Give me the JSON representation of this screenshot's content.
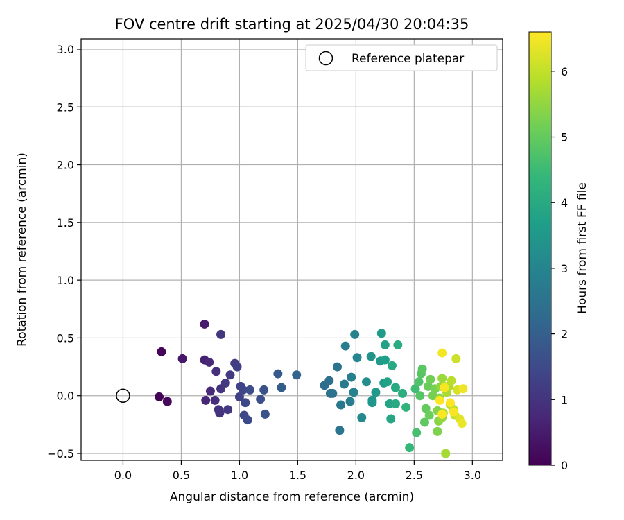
{
  "chart_data": {
    "type": "scatter",
    "title": "FOV centre drift starting at 2025/04/30 20:04:35",
    "xlabel": "Angular distance from reference (arcmin)",
    "ylabel": "Rotation from reference (arcmin)",
    "xlim": [
      -0.36,
      3.26
    ],
    "ylim": [
      -0.56,
      3.09
    ],
    "xticks": [
      0.0,
      0.5,
      1.0,
      1.5,
      2.0,
      2.5,
      3.0
    ],
    "xtick_labels": [
      "0.0",
      "0.5",
      "1.0",
      "1.5",
      "2.0",
      "2.5",
      "3.0"
    ],
    "yticks": [
      -0.5,
      0.0,
      0.5,
      1.0,
      1.5,
      2.0,
      2.5,
      3.0
    ],
    "ytick_labels": [
      "−0.5",
      "0.0",
      "0.5",
      "1.0",
      "1.5",
      "2.0",
      "2.5",
      "3.0"
    ],
    "grid": true,
    "legend": {
      "position": "top-right",
      "label": "Reference platepar"
    },
    "reference_point": {
      "x": 0.0,
      "y": 0.0
    },
    "colorbar": {
      "label": "Hours from first FF file",
      "range": [
        0,
        6.6
      ],
      "ticks": [
        0,
        1,
        2,
        3,
        4,
        5,
        6
      ],
      "tick_labels": [
        "0",
        "1",
        "2",
        "3",
        "4",
        "5",
        "6"
      ],
      "colormap": "viridis"
    },
    "colormap_stops": [
      "#440154",
      "#482878",
      "#3e4989",
      "#31688e",
      "#26828e",
      "#1f9e89",
      "#35b779",
      "#6ece58",
      "#b5de2b",
      "#fde725"
    ],
    "points": [
      {
        "x": 0.31,
        "y": -0.01,
        "h": 0.05
      },
      {
        "x": 0.33,
        "y": 0.38,
        "h": 0.1
      },
      {
        "x": 0.38,
        "y": -0.05,
        "h": 0.15
      },
      {
        "x": 0.51,
        "y": 0.32,
        "h": 0.4
      },
      {
        "x": 0.7,
        "y": 0.62,
        "h": 0.5
      },
      {
        "x": 0.7,
        "y": 0.31,
        "h": 0.6
      },
      {
        "x": 0.71,
        "y": -0.04,
        "h": 0.7
      },
      {
        "x": 0.74,
        "y": 0.29,
        "h": 0.75
      },
      {
        "x": 0.75,
        "y": 0.04,
        "h": 0.8
      },
      {
        "x": 0.79,
        "y": -0.04,
        "h": 0.85
      },
      {
        "x": 0.8,
        "y": 0.21,
        "h": 0.9
      },
      {
        "x": 0.82,
        "y": -0.12,
        "h": 0.95
      },
      {
        "x": 0.83,
        "y": -0.15,
        "h": 1.0
      },
      {
        "x": 0.84,
        "y": 0.06,
        "h": 1.0
      },
      {
        "x": 0.84,
        "y": 0.53,
        "h": 1.05
      },
      {
        "x": 0.88,
        "y": 0.11,
        "h": 1.1
      },
      {
        "x": 0.9,
        "y": -0.12,
        "h": 1.1
      },
      {
        "x": 0.92,
        "y": 0.18,
        "h": 1.15
      },
      {
        "x": 0.96,
        "y": 0.28,
        "h": 1.2
      },
      {
        "x": 0.98,
        "y": 0.25,
        "h": 1.25
      },
      {
        "x": 1.0,
        "y": -0.01,
        "h": 1.3
      },
      {
        "x": 1.01,
        "y": 0.08,
        "h": 1.35
      },
      {
        "x": 1.03,
        "y": 0.05,
        "h": 1.4
      },
      {
        "x": 1.04,
        "y": -0.17,
        "h": 1.4
      },
      {
        "x": 1.05,
        "y": -0.06,
        "h": 1.45
      },
      {
        "x": 1.07,
        "y": -0.21,
        "h": 1.5
      },
      {
        "x": 1.09,
        "y": 0.05,
        "h": 1.55
      },
      {
        "x": 1.18,
        "y": -0.03,
        "h": 1.6
      },
      {
        "x": 1.21,
        "y": 0.05,
        "h": 1.65
      },
      {
        "x": 1.22,
        "y": -0.16,
        "h": 1.7
      },
      {
        "x": 1.33,
        "y": 0.19,
        "h": 1.85
      },
      {
        "x": 1.36,
        "y": 0.07,
        "h": 1.95
      },
      {
        "x": 1.49,
        "y": 0.18,
        "h": 2.1
      },
      {
        "x": 1.73,
        "y": 0.09,
        "h": 2.35
      },
      {
        "x": 1.77,
        "y": 0.13,
        "h": 2.4
      },
      {
        "x": 1.78,
        "y": 0.02,
        "h": 2.45
      },
      {
        "x": 1.8,
        "y": 0.02,
        "h": 2.5
      },
      {
        "x": 1.84,
        "y": 0.25,
        "h": 2.55
      },
      {
        "x": 1.86,
        "y": -0.3,
        "h": 2.6
      },
      {
        "x": 1.87,
        "y": -0.08,
        "h": 2.65
      },
      {
        "x": 1.9,
        "y": 0.1,
        "h": 2.7
      },
      {
        "x": 1.91,
        "y": 0.43,
        "h": 2.75
      },
      {
        "x": 1.95,
        "y": -0.05,
        "h": 2.8
      },
      {
        "x": 1.96,
        "y": 0.16,
        "h": 2.85
      },
      {
        "x": 1.98,
        "y": 0.03,
        "h": 2.9
      },
      {
        "x": 1.99,
        "y": 0.53,
        "h": 2.95
      },
      {
        "x": 2.01,
        "y": 0.33,
        "h": 3.05
      },
      {
        "x": 2.05,
        "y": -0.19,
        "h": 3.15
      },
      {
        "x": 2.09,
        "y": 0.12,
        "h": 3.25
      },
      {
        "x": 2.13,
        "y": 0.34,
        "h": 3.35
      },
      {
        "x": 2.14,
        "y": -0.04,
        "h": 3.4
      },
      {
        "x": 2.14,
        "y": -0.06,
        "h": 3.45
      },
      {
        "x": 2.17,
        "y": 0.03,
        "h": 3.5
      },
      {
        "x": 2.21,
        "y": 0.3,
        "h": 3.55
      },
      {
        "x": 2.22,
        "y": 0.54,
        "h": 3.6
      },
      {
        "x": 2.24,
        "y": 0.11,
        "h": 3.65
      },
      {
        "x": 2.25,
        "y": 0.31,
        "h": 3.7
      },
      {
        "x": 2.25,
        "y": 0.44,
        "h": 3.75
      },
      {
        "x": 2.27,
        "y": 0.12,
        "h": 3.8
      },
      {
        "x": 2.29,
        "y": -0.07,
        "h": 3.85
      },
      {
        "x": 2.3,
        "y": -0.2,
        "h": 3.9
      },
      {
        "x": 2.31,
        "y": 0.26,
        "h": 3.95
      },
      {
        "x": 2.34,
        "y": -0.07,
        "h": 4.0
      },
      {
        "x": 2.34,
        "y": 0.07,
        "h": 4.0
      },
      {
        "x": 2.36,
        "y": 0.44,
        "h": 4.05
      },
      {
        "x": 2.4,
        "y": 0.02,
        "h": 4.15
      },
      {
        "x": 2.43,
        "y": -0.1,
        "h": 4.25
      },
      {
        "x": 2.46,
        "y": -0.45,
        "h": 4.4
      },
      {
        "x": 2.51,
        "y": 0.06,
        "h": 4.55
      },
      {
        "x": 2.52,
        "y": -0.32,
        "h": 4.65
      },
      {
        "x": 2.54,
        "y": 0.12,
        "h": 4.75
      },
      {
        "x": 2.55,
        "y": 0.0,
        "h": 4.8
      },
      {
        "x": 2.56,
        "y": 0.19,
        "h": 4.85
      },
      {
        "x": 2.57,
        "y": 0.23,
        "h": 4.9
      },
      {
        "x": 2.59,
        "y": -0.23,
        "h": 4.95
      },
      {
        "x": 2.6,
        "y": -0.11,
        "h": 5.0
      },
      {
        "x": 2.62,
        "y": 0.08,
        "h": 5.05
      },
      {
        "x": 2.63,
        "y": -0.17,
        "h": 5.1
      },
      {
        "x": 2.64,
        "y": 0.14,
        "h": 5.15
      },
      {
        "x": 2.66,
        "y": 0.0,
        "h": 5.2
      },
      {
        "x": 2.68,
        "y": 0.06,
        "h": 5.25
      },
      {
        "x": 2.7,
        "y": -0.31,
        "h": 5.3
      },
      {
        "x": 2.7,
        "y": -0.13,
        "h": 5.35
      },
      {
        "x": 2.71,
        "y": -0.22,
        "h": 5.4
      },
      {
        "x": 2.72,
        "y": -0.02,
        "h": 5.45
      },
      {
        "x": 2.73,
        "y": 0.08,
        "h": 5.5
      },
      {
        "x": 2.74,
        "y": -0.19,
        "h": 5.55
      },
      {
        "x": 2.74,
        "y": 0.15,
        "h": 5.6
      },
      {
        "x": 2.75,
        "y": -0.15,
        "h": 5.65
      },
      {
        "x": 2.76,
        "y": 0.08,
        "h": 5.7
      },
      {
        "x": 2.77,
        "y": -0.5,
        "h": 5.7
      },
      {
        "x": 2.78,
        "y": 0.03,
        "h": 5.75
      },
      {
        "x": 2.8,
        "y": 0.08,
        "h": 5.8
      },
      {
        "x": 2.81,
        "y": -0.08,
        "h": 5.85
      },
      {
        "x": 2.82,
        "y": 0.13,
        "h": 5.9
      },
      {
        "x": 2.84,
        "y": -0.12,
        "h": 5.95
      },
      {
        "x": 2.85,
        "y": -0.17,
        "h": 6.0
      },
      {
        "x": 2.86,
        "y": 0.32,
        "h": 6.1
      },
      {
        "x": 2.87,
        "y": 0.05,
        "h": 6.2
      },
      {
        "x": 2.89,
        "y": -0.2,
        "h": 6.3
      },
      {
        "x": 2.91,
        "y": -0.24,
        "h": 6.4
      },
      {
        "x": 2.92,
        "y": 0.06,
        "h": 6.45
      },
      {
        "x": 2.74,
        "y": 0.37,
        "h": 6.5
      },
      {
        "x": 2.76,
        "y": 0.07,
        "h": 6.55
      },
      {
        "x": 2.81,
        "y": -0.06,
        "h": 6.6
      },
      {
        "x": 2.74,
        "y": -0.16,
        "h": 6.6
      },
      {
        "x": 2.84,
        "y": -0.14,
        "h": 6.55
      },
      {
        "x": 2.72,
        "y": -0.04,
        "h": 6.6
      }
    ]
  }
}
